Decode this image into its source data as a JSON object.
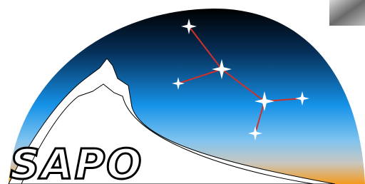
{
  "logo": {
    "text": "SAPO"
  }
}
